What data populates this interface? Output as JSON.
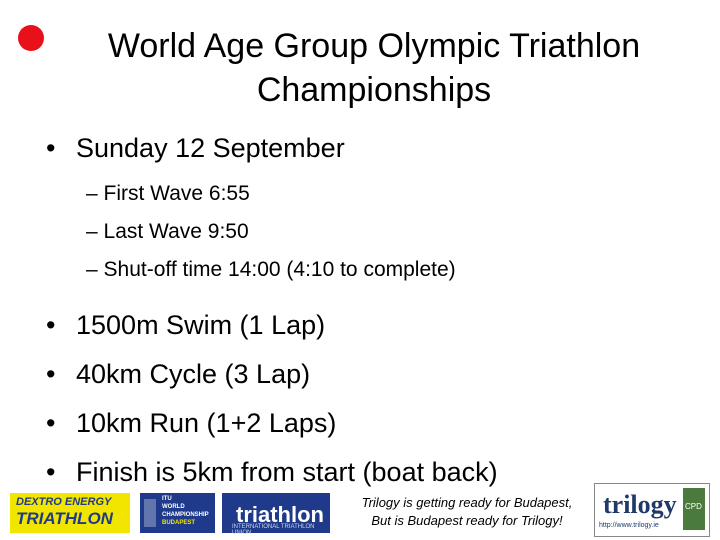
{
  "slide": {
    "title_lines": [
      "World Age Group Olympic Triathlon",
      "Championships"
    ],
    "bullet_char": "•",
    "first_bullet": "Sunday 12 September",
    "sub_bullets": [
      "– First Wave 6:55",
      "– Last Wave 9:50",
      "– Shut-off time 14:00 (4:10 to complete)"
    ],
    "main_bullets": [
      "1500m Swim (1 Lap)",
      "40km Cycle (3 Lap)",
      "10km Run (1+2 Laps)",
      "Finish is 5km from start (boat back)"
    ]
  },
  "footer": {
    "logos": {
      "dextro": {
        "line1": "DEXTRO ENERGY",
        "line2": "TRIATHLON"
      },
      "itu": {
        "lines": [
          "ITU",
          "WORLD",
          "CHAMPIONSHIP",
          "BUDAPEST"
        ]
      },
      "triathlon": {
        "text": "triathlon",
        "sub": "INTERNATIONAL TRIATHLON UNION"
      },
      "trilogy": {
        "text": "trilogy",
        "url": "http://www.trilogy.ie",
        "badge": "CPD"
      }
    },
    "tagline_lines": [
      "Trilogy is getting ready for Budapest,",
      "But is Budapest ready for Trilogy!"
    ]
  },
  "colors": {
    "accent_red": "#e8101a",
    "navy": "#1f3a8a",
    "yellow": "#f2e600",
    "green": "#4a7a3c"
  }
}
